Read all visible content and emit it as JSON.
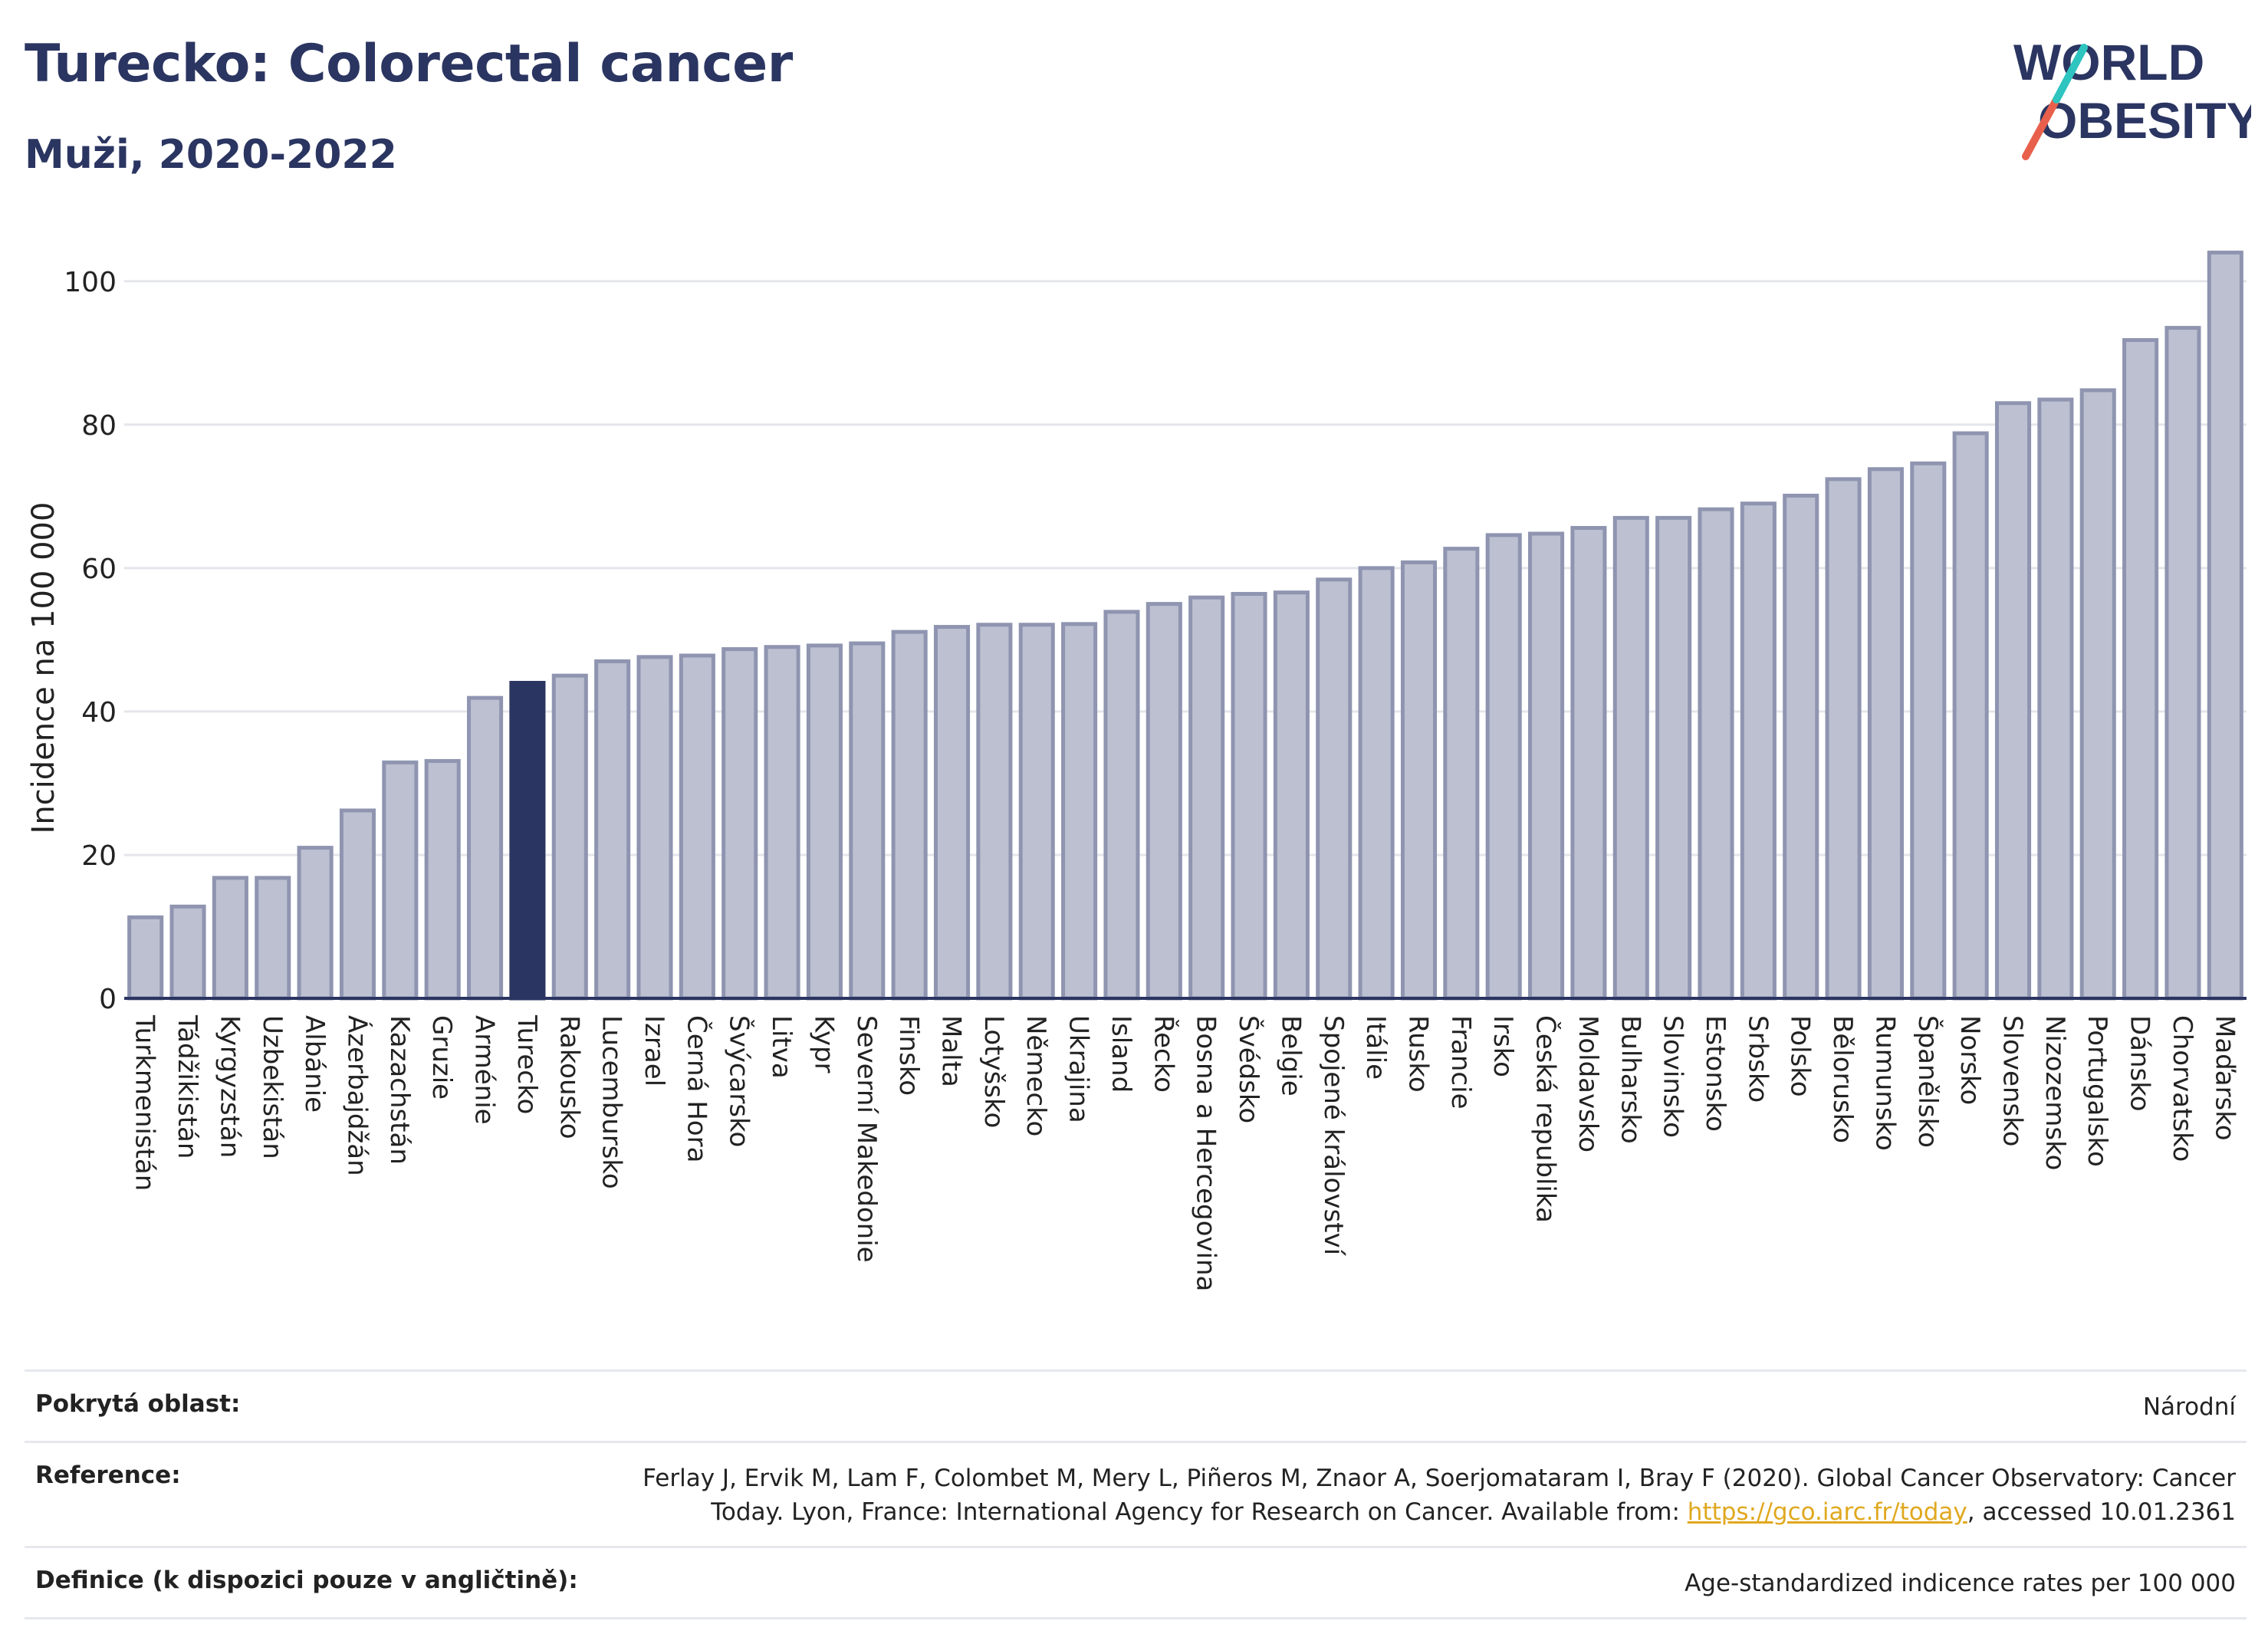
{
  "header": {
    "title": "Turecko: Colorectal cancer",
    "subtitle": "Muži, 2020-2022"
  },
  "logo": {
    "line1": "WORLD",
    "line2": "OBESITY",
    "colors": {
      "text": "#2b3561",
      "slash_top": "#2ec4c0",
      "slash_bottom": "#e8604c"
    }
  },
  "chart_data": {
    "type": "bar",
    "ylabel": "Incidence na 100 000",
    "xlabel": "",
    "ylim": [
      0,
      105
    ],
    "yticks": [
      0,
      20,
      40,
      60,
      80,
      100
    ],
    "grid": true,
    "highlight": "Turecko",
    "colors": {
      "bar": "#bcc0d1",
      "bar_edge": "#8f95b0",
      "highlight": "#2b3561"
    },
    "categories": [
      "Turkmenistán",
      "Tádžikistán",
      "Kyrgyzstán",
      "Uzbekistán",
      "Albánie",
      "Ázerbajdžán",
      "Kazachstán",
      "Gruzie",
      "Arménie",
      "Turecko",
      "Rakousko",
      "Lucembursko",
      "Izrael",
      "Černá Hora",
      "Švýcarsko",
      "Litva",
      "Kypr",
      "Severní Makedonie",
      "Finsko",
      "Malta",
      "Lotyšsko",
      "Německo",
      "Ukrajina",
      "Island",
      "Řecko",
      "Bosna a Hercegovina",
      "Švédsko",
      "Belgie",
      "Spojené království",
      "Itálie",
      "Rusko",
      "Francie",
      "Irsko",
      "Česká republika",
      "Moldavsko",
      "Bulharsko",
      "Slovinsko",
      "Estonsko",
      "Srbsko",
      "Polsko",
      "Bělorusko",
      "Rumunsko",
      "Španělsko",
      "Norsko",
      "Slovensko",
      "Nizozemsko",
      "Portugalsko",
      "Dánsko",
      "Chorvatsko",
      "Maďarsko"
    ],
    "values": [
      11.3,
      12.8,
      16.8,
      16.8,
      21.0,
      26.2,
      32.9,
      33.1,
      41.9,
      44.0,
      45.0,
      47.0,
      47.6,
      47.8,
      48.7,
      49.0,
      49.2,
      49.5,
      51.1,
      51.8,
      52.1,
      52.1,
      52.2,
      53.9,
      55.0,
      55.9,
      56.4,
      56.6,
      58.4,
      60.0,
      60.8,
      62.7,
      64.6,
      64.8,
      65.6,
      67.0,
      67.0,
      68.2,
      69.0,
      70.1,
      72.4,
      73.8,
      74.6,
      78.8,
      83.0,
      83.5,
      84.8,
      91.8,
      93.5,
      104.0
    ]
  },
  "footer": {
    "rows": [
      {
        "label": "Pokrytá oblast:",
        "value": "Národní"
      },
      {
        "label": "Reference:",
        "value_line1": "Ferlay J, Ervik M, Lam F, Colombet M, Mery L, Piñeros M, Znaor A, Soerjomataram I, Bray F (2020). Global Cancer Observatory: Cancer",
        "value_line2_pre": "Today. Lyon, France: International Agency for Research on Cancer. Available from: ",
        "link": "https://gco.iarc.fr/today",
        "value_line2_post": ", accessed 10.01.2361"
      },
      {
        "label": "Definice (k dispozici pouze v angličtině):",
        "value": "Age-standardized indicence rates per 100 000"
      }
    ]
  }
}
